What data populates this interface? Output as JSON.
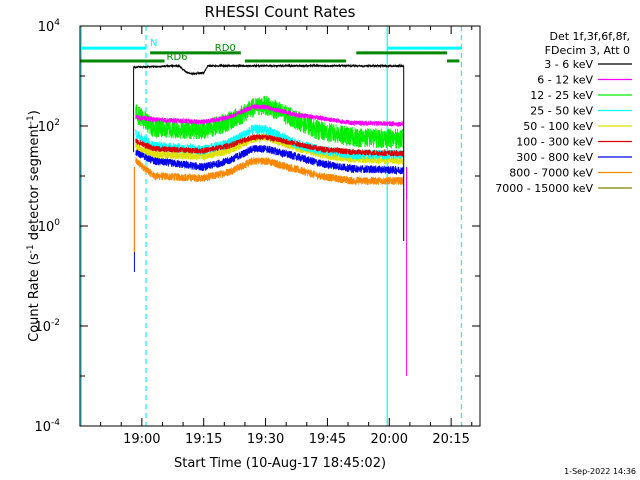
{
  "chart_data": {
    "type": "line",
    "title": "RHESSI Count Rates",
    "xlabel": "Start Time (10-Aug-17 18:45:02)",
    "ylabel_main": "Count Rate (s",
    "ylabel_sup1": "-1",
    "ylabel_mid": " detector segment",
    "ylabel_sup2": "-1",
    "ylabel_end": ")",
    "x_start_label": "10-Aug-17 18:45:02",
    "x_ticks": [
      {
        "label": "19:00",
        "min": 15
      },
      {
        "label": "19:15",
        "min": 30
      },
      {
        "label": "19:30",
        "min": 45
      },
      {
        "label": "19:45",
        "min": 60
      },
      {
        "label": "20:00",
        "min": 75
      },
      {
        "label": "20:15",
        "min": 90
      }
    ],
    "y_scale": "log",
    "y_ticks": [
      {
        "base": "10",
        "exp": "4",
        "value": 10000
      },
      {
        "base": "10",
        "exp": "2",
        "value": 100
      },
      {
        "base": "10",
        "exp": "0",
        "value": 1
      },
      {
        "base": "10",
        "exp": "-2",
        "value": 0.01
      },
      {
        "base": "10",
        "exp": "-4",
        "value": 0.0001
      }
    ],
    "xlim_minutes": [
      0,
      97
    ],
    "ylim": [
      0.0001,
      10000
    ],
    "legend": {
      "position": "right",
      "header_lines": [
        "Det 1f,3f,6f,8f,",
        "FDecim 3, Att 0"
      ],
      "entries": [
        {
          "label": "3 - 6 keV",
          "color": "#000000"
        },
        {
          "label": "6 - 12 keV",
          "color": "#ff00ff"
        },
        {
          "label": "12 - 25 keV",
          "color": "#00ee00"
        },
        {
          "label": "25 - 50 keV",
          "color": "#00ffff"
        },
        {
          "label": "50 - 100 keV",
          "color": "#e0e000"
        },
        {
          "label": "100 - 300 keV",
          "color": "#dd0000"
        },
        {
          "label": "300 - 800 keV",
          "color": "#0000ee"
        },
        {
          "label": "800 - 7000 keV",
          "color": "#ff8800"
        },
        {
          "label": "7000 - 15000 keV",
          "color": "#808000"
        }
      ]
    },
    "series": [
      {
        "name": "3 - 6 keV",
        "color": "#000000",
        "noise": 0.02,
        "points": [
          [
            13,
            1500
          ],
          [
            24,
            1600
          ],
          [
            26,
            1150
          ],
          [
            27,
            1120
          ],
          [
            30,
            1150
          ],
          [
            31,
            1600
          ],
          [
            78.5,
            1600
          ]
        ]
      },
      {
        "name": "6 - 12 keV",
        "color": "#ff00ff",
        "noise": 0.05,
        "points": [
          [
            13.5,
            150
          ],
          [
            18,
            135
          ],
          [
            30,
            120
          ],
          [
            36,
            150
          ],
          [
            42,
            240
          ],
          [
            45,
            240
          ],
          [
            52,
            170
          ],
          [
            58,
            145
          ],
          [
            66,
            115
          ],
          [
            78.5,
            110
          ]
        ]
      },
      {
        "name": "12 - 25 keV",
        "color": "#00ee00",
        "noise": 0.2,
        "points": [
          [
            13.5,
            180
          ],
          [
            18,
            90
          ],
          [
            30,
            85
          ],
          [
            36,
            120
          ],
          [
            42,
            230
          ],
          [
            45,
            260
          ],
          [
            52,
            140
          ],
          [
            58,
            80
          ],
          [
            66,
            60
          ],
          [
            78.5,
            55
          ]
        ]
      },
      {
        "name": "25 - 50 keV",
        "color": "#00ffff",
        "noise": 0.1,
        "points": [
          [
            13.5,
            70
          ],
          [
            18,
            40
          ],
          [
            30,
            33
          ],
          [
            36,
            45
          ],
          [
            42,
            85
          ],
          [
            45,
            85
          ],
          [
            52,
            45
          ],
          [
            58,
            33
          ],
          [
            66,
            27
          ],
          [
            78.5,
            27
          ]
        ]
      },
      {
        "name": "50 - 100 keV",
        "color": "#e0e000",
        "noise": 0.08,
        "points": [
          [
            13.5,
            40
          ],
          [
            18,
            27
          ],
          [
            30,
            25
          ],
          [
            36,
            32
          ],
          [
            42,
            55
          ],
          [
            45,
            60
          ],
          [
            52,
            38
          ],
          [
            58,
            27
          ],
          [
            66,
            22
          ],
          [
            78.5,
            20
          ]
        ]
      },
      {
        "name": "100 - 300 keV",
        "color": "#dd0000",
        "noise": 0.06,
        "points": [
          [
            13.5,
            50
          ],
          [
            18,
            35
          ],
          [
            30,
            32
          ],
          [
            36,
            40
          ],
          [
            42,
            60
          ],
          [
            45,
            60
          ],
          [
            52,
            45
          ],
          [
            58,
            35
          ],
          [
            66,
            30
          ],
          [
            78.5,
            28
          ]
        ]
      },
      {
        "name": "300 - 800 keV",
        "color": "#0000ee",
        "noise": 0.08,
        "points": [
          [
            13.5,
            30
          ],
          [
            18,
            20
          ],
          [
            30,
            15
          ],
          [
            36,
            20
          ],
          [
            42,
            35
          ],
          [
            45,
            35
          ],
          [
            52,
            25
          ],
          [
            58,
            18
          ],
          [
            66,
            14
          ],
          [
            78.5,
            13
          ]
        ]
      },
      {
        "name": "800 - 7000 keV",
        "color": "#ff8800",
        "noise": 0.08,
        "points": [
          [
            13.5,
            20
          ],
          [
            18,
            10
          ],
          [
            30,
            9
          ],
          [
            36,
            12
          ],
          [
            42,
            20
          ],
          [
            45,
            20
          ],
          [
            52,
            14
          ],
          [
            58,
            10
          ],
          [
            66,
            8
          ],
          [
            78.5,
            8
          ]
        ]
      },
      {
        "name": "7000 - 15000 keV",
        "color": "#808000",
        "noise": 0.0,
        "points": []
      }
    ],
    "drops": [
      {
        "color": "#0000ee",
        "x": 13.2,
        "y_low": 0.12
      },
      {
        "color": "#ff8800",
        "x": 13.2,
        "y_low": 0.3
      },
      {
        "color": "#0000ee",
        "x": 79.2,
        "y_low": 3.5
      },
      {
        "color": "#ff00ff",
        "x": 79.2,
        "y_low": 0.001
      }
    ],
    "vertical_lines": [
      {
        "min": 0.3,
        "style": "solid",
        "color": "#00ffff"
      },
      {
        "min": 16.0,
        "style": "dashed",
        "color": "#00ffff"
      },
      {
        "min": 74.5,
        "style": "solid",
        "color": "#00ffff"
      },
      {
        "min": 92.5,
        "style": "dashed",
        "color": "#00ffff"
      }
    ],
    "bars": [
      {
        "label": "N",
        "color": "#00ffff",
        "segments": [
          [
            0,
            16
          ],
          [
            74.5,
            92.5
          ]
        ],
        "y": 3600,
        "width": 3
      },
      {
        "label": "RD0",
        "color": "#008800",
        "segments": [
          [
            17,
            39
          ],
          [
            67,
            89
          ]
        ],
        "y": 2900,
        "width": 3
      },
      {
        "label": "RD6",
        "color": "#008800",
        "segments": [
          [
            0,
            20.5
          ],
          [
            40,
            64.5
          ],
          [
            89,
            92
          ]
        ],
        "y": 2000,
        "width": 3
      }
    ]
  },
  "timestamp": "1-Sep-2022 14:36"
}
